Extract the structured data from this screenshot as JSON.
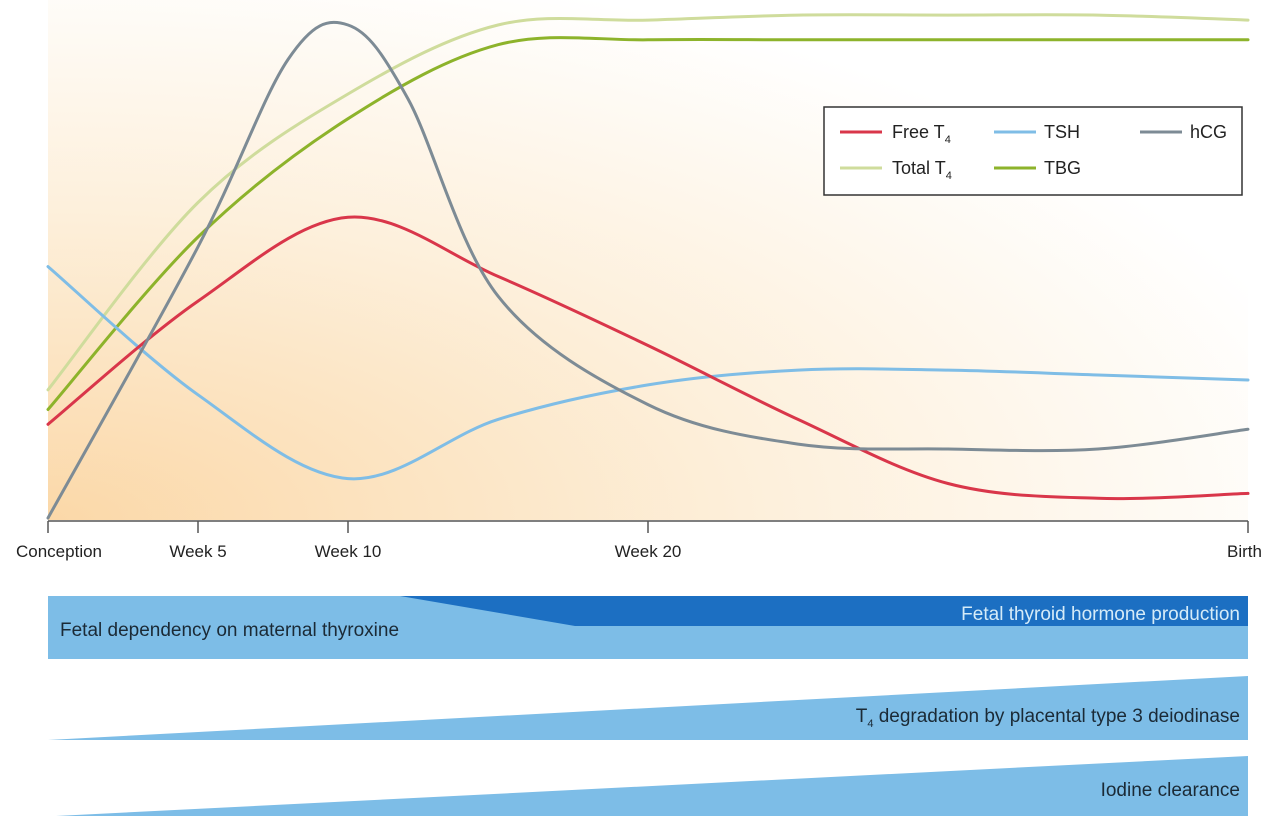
{
  "colors": {
    "free_t4": "#d9364a",
    "tsh": "#7fbde6",
    "hcg": "#7d8b95",
    "total_t4": "#cfdc9c",
    "tbg": "#8db32b",
    "band_light": "#7dbde7",
    "band_dark": "#1c6fc2",
    "background_warm": "#fbdcae"
  },
  "chart_data": {
    "type": "line",
    "x_categories": [
      "Conception",
      "Week 5",
      "Week 10",
      "Week 20",
      "Birth"
    ],
    "x_ticks_week": [
      0,
      5,
      10,
      20,
      40
    ],
    "xlim": [
      0,
      40
    ],
    "ylim": [
      0,
      100
    ],
    "grid": false,
    "legend_position": "top-right",
    "series": [
      {
        "key": "free_t4",
        "name": "Free T",
        "subscript": "4",
        "x": [
          0,
          5,
          10,
          15,
          20,
          25,
          30,
          35,
          40
        ],
        "y": [
          19,
          44,
          61,
          49,
          35,
          20,
          7,
          4,
          5
        ]
      },
      {
        "key": "tsh",
        "name": "TSH",
        "subscript": "",
        "x": [
          0,
          5,
          10,
          15,
          20,
          25,
          30,
          35,
          40
        ],
        "y": [
          51,
          25,
          8,
          20,
          27,
          30,
          30,
          29,
          28
        ]
      },
      {
        "key": "hcg",
        "name": "hCG",
        "subscript": "",
        "x": [
          0,
          5,
          8,
          10,
          12,
          15,
          20,
          25,
          30,
          35,
          40
        ],
        "y": [
          0,
          55,
          93,
          100,
          85,
          45,
          23,
          15,
          14,
          14,
          18
        ]
      },
      {
        "key": "total_t4",
        "name": "Total T",
        "subscript": "4",
        "x": [
          0,
          5,
          10,
          15,
          20,
          25,
          30,
          35,
          40
        ],
        "y": [
          26,
          64,
          86,
          100,
          101,
          102,
          102,
          102,
          101
        ]
      },
      {
        "key": "tbg",
        "name": "TBG",
        "subscript": "",
        "x": [
          0,
          5,
          10,
          15,
          20,
          25,
          30,
          35,
          40
        ],
        "y": [
          22,
          57,
          81,
          96,
          97,
          97,
          97,
          97,
          97
        ]
      }
    ]
  },
  "bands": [
    {
      "key": "dependency",
      "label": "Fetal dependency on maternal thyroxine",
      "prefix": "",
      "subscript": ""
    },
    {
      "key": "production",
      "label": "Fetal thyroid hormone production",
      "prefix": "",
      "subscript": ""
    },
    {
      "key": "degradation",
      "label": " degradation by placental type 3 deiodinase",
      "prefix": "T",
      "subscript": "4"
    },
    {
      "key": "iodine",
      "label": "Iodine clearance",
      "prefix": "",
      "subscript": ""
    }
  ]
}
